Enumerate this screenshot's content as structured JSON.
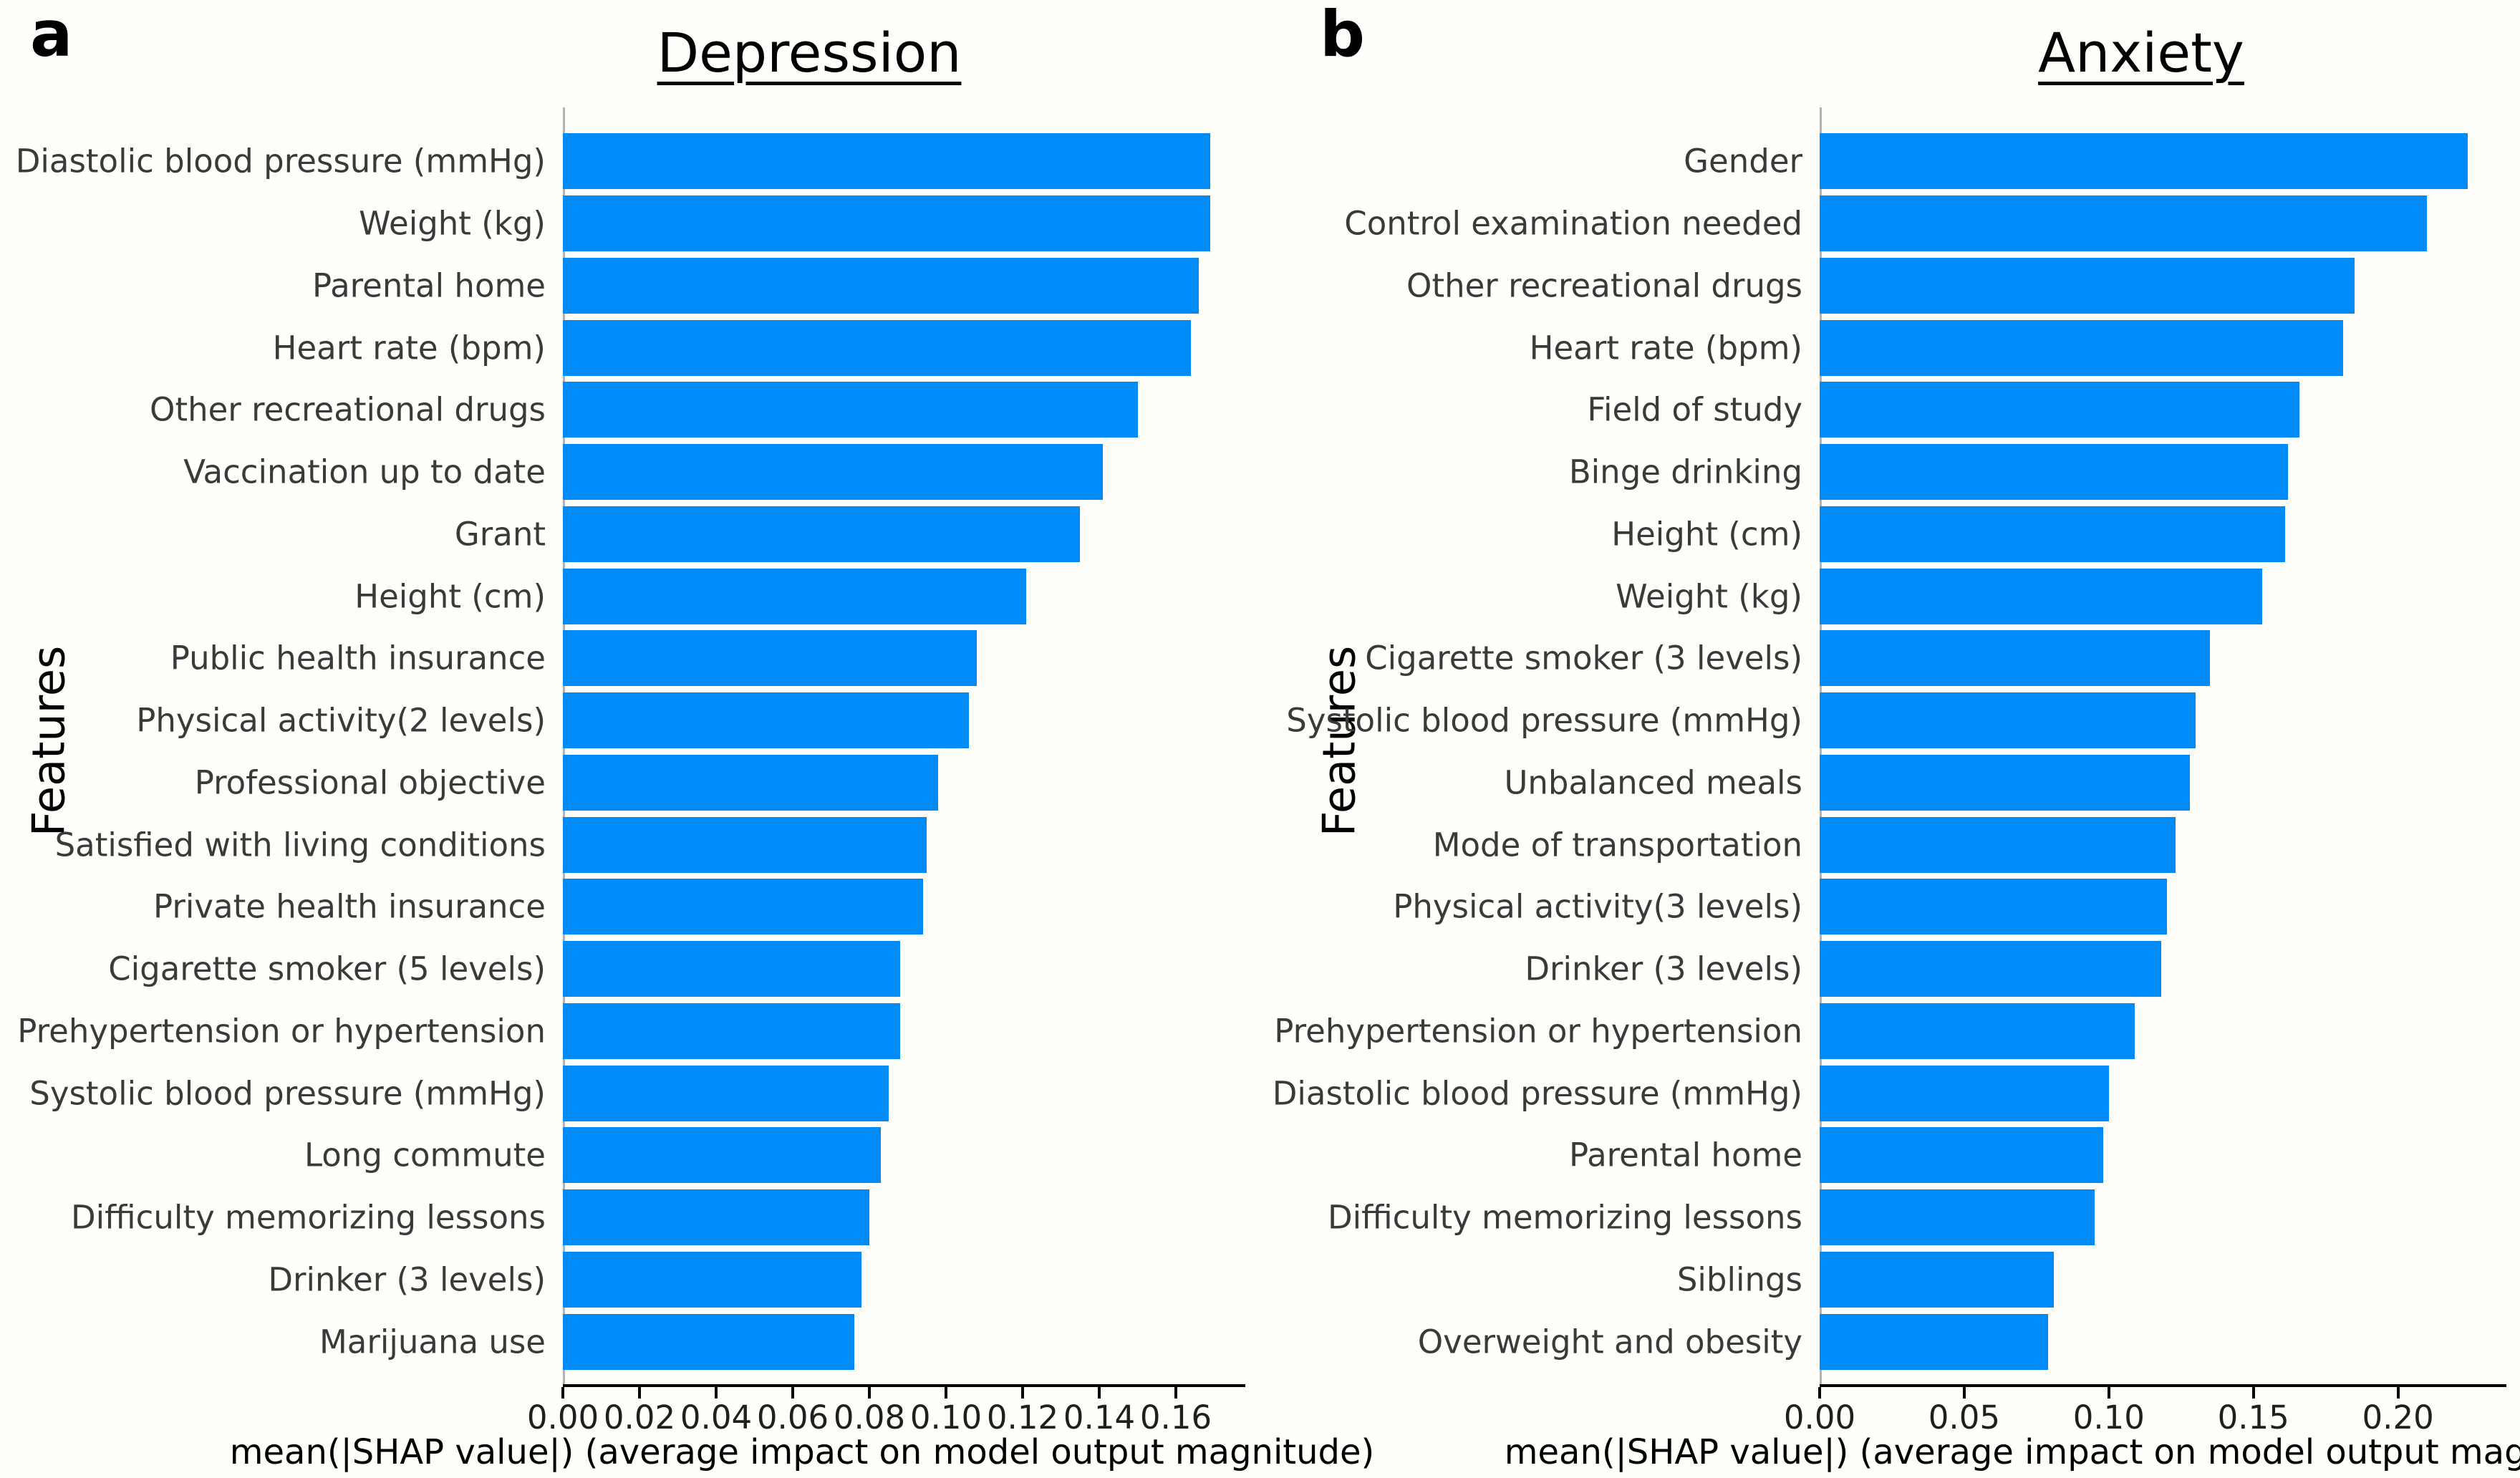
{
  "figure": {
    "background_color": "#fffefb",
    "bar_color": "#008bf9",
    "axis_color": "#000000",
    "label_color": "#3a3a3a"
  },
  "chart_data": [
    {
      "type": "bar",
      "orientation": "horizontal",
      "panel_letter": "a",
      "title": "Depression",
      "ylabel": "Features",
      "xlabel": "mean(|SHAP value|) (average impact on model output magnitude)",
      "categories": [
        "Diastolic blood pressure (mmHg)",
        "Weight (kg)",
        "Parental home",
        "Heart rate (bpm)",
        "Other recreational drugs",
        "Vaccination up to date",
        "Grant",
        "Height (cm)",
        "Public health insurance",
        "Physical activity(2 levels)",
        "Professional objective",
        "Satisfied with living conditions",
        "Private health insurance",
        "Cigarette smoker (5 levels)",
        "Prehypertension or hypertension",
        "Systolic blood pressure (mmHg)",
        "Long commute",
        "Difficulty memorizing lessons",
        "Drinker (3 levels)",
        "Marijuana use"
      ],
      "values": [
        0.169,
        0.169,
        0.166,
        0.164,
        0.15,
        0.141,
        0.135,
        0.121,
        0.108,
        0.106,
        0.098,
        0.095,
        0.094,
        0.088,
        0.088,
        0.085,
        0.083,
        0.08,
        0.078,
        0.076
      ],
      "xlim": [
        0,
        0.177
      ],
      "xtick_values": [
        0.0,
        0.02,
        0.04,
        0.06,
        0.08,
        0.1,
        0.12,
        0.14,
        0.16
      ],
      "xtick_labels": [
        "0.00",
        "0.02",
        "0.04",
        "0.06",
        "0.08",
        "0.10",
        "0.12",
        "0.14",
        "0.16"
      ],
      "grid": false,
      "legend": "none"
    },
    {
      "type": "bar",
      "orientation": "horizontal",
      "panel_letter": "b",
      "title": "Anxiety",
      "ylabel": "Features",
      "xlabel": "mean(|SHAP value|) (average impact on model output magnitude)",
      "categories": [
        "Gender",
        "Control examination needed",
        "Other recreational drugs",
        "Heart rate (bpm)",
        "Field of study",
        "Binge drinking",
        "Height (cm)",
        "Weight (kg)",
        "Cigarette smoker (3 levels)",
        "Systolic blood pressure (mmHg)",
        "Unbalanced meals",
        "Mode of transportation",
        "Physical activity(3 levels)",
        "Drinker (3 levels)",
        "Prehypertension or hypertension",
        "Diastolic blood pressure (mmHg)",
        "Parental home",
        "Difficulty memorizing lessons",
        "Siblings",
        "Overweight and obesity"
      ],
      "values": [
        0.224,
        0.21,
        0.185,
        0.181,
        0.166,
        0.162,
        0.161,
        0.153,
        0.135,
        0.13,
        0.128,
        0.123,
        0.12,
        0.118,
        0.109,
        0.1,
        0.098,
        0.095,
        0.081,
        0.079
      ],
      "xlim": [
        0,
        0.236
      ],
      "xtick_values": [
        0.0,
        0.05,
        0.1,
        0.15,
        0.2
      ],
      "xtick_labels": [
        "0.00",
        "0.05",
        "0.10",
        "0.15",
        "0.20"
      ],
      "grid": false,
      "legend": "none"
    }
  ]
}
